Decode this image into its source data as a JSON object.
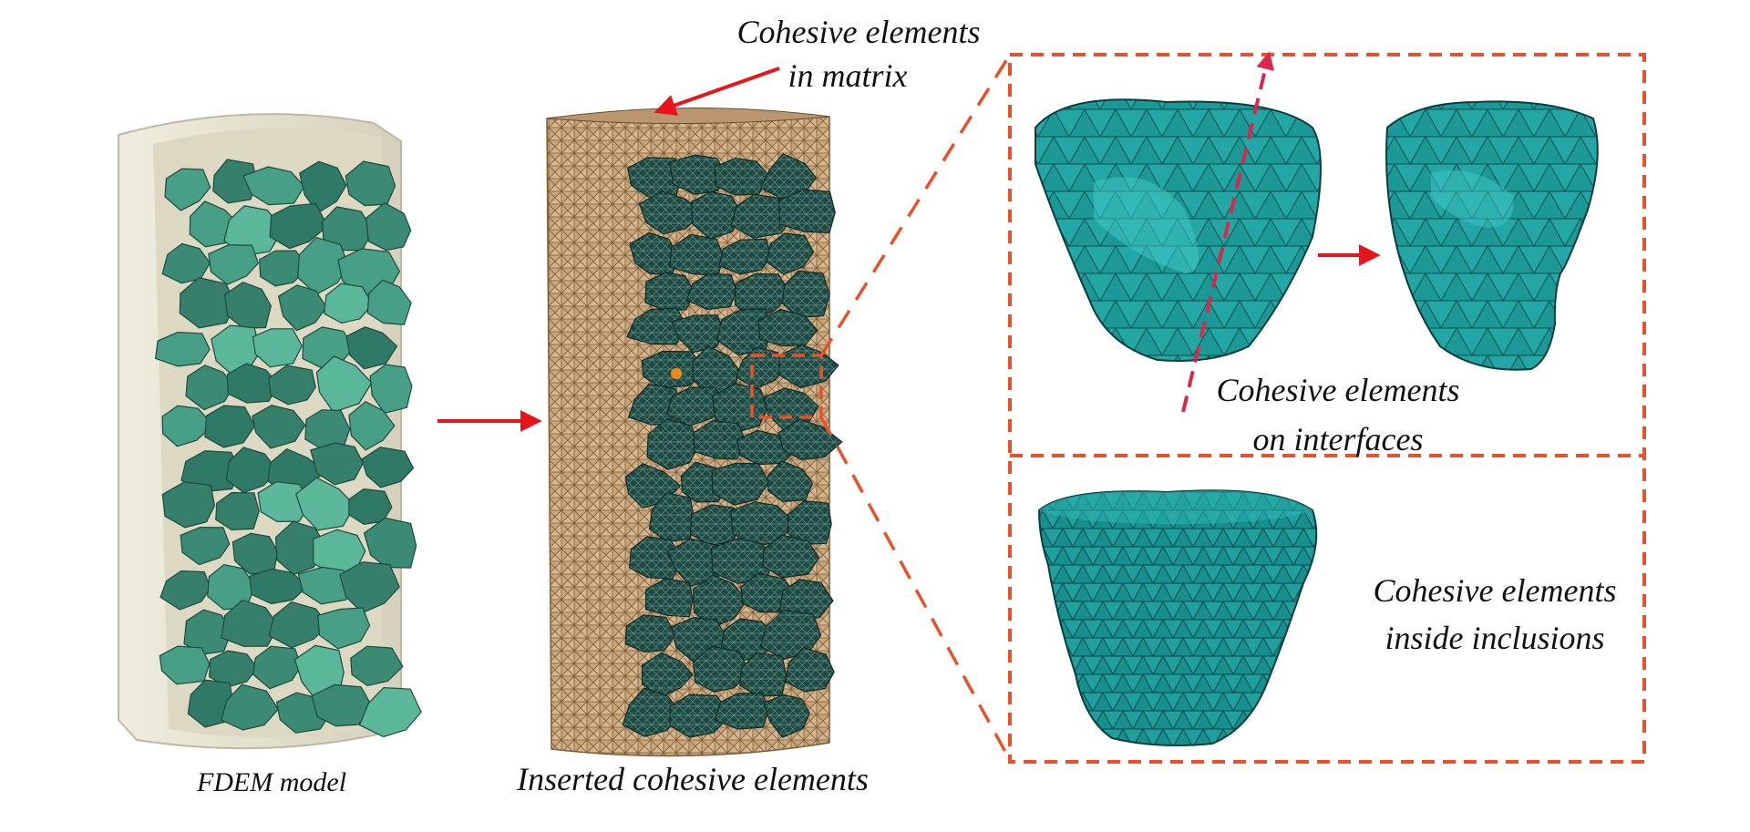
{
  "labels": {
    "fdem_model": "FDEM model",
    "inserted": "Inserted cohesive elements",
    "matrix_line1": "Cohesive elements",
    "matrix_line2": "in matrix",
    "interfaces_line1": "Cohesive elements",
    "interfaces_line2": "on interfaces",
    "inclusions_line1": "Cohesive elements",
    "inclusions_line2": "inside inclusions"
  },
  "colors": {
    "arrow": "#e8141c",
    "dash_frame": "#e8522a",
    "matrix_shell": "#e7e4d6",
    "matrix_mesh": "#c9a77f",
    "grain_green": "#3a8a74",
    "grain_dark": "#2c5a50",
    "inclusion_teal": "#1f9c9a",
    "cut_plane": "#d9284e"
  }
}
